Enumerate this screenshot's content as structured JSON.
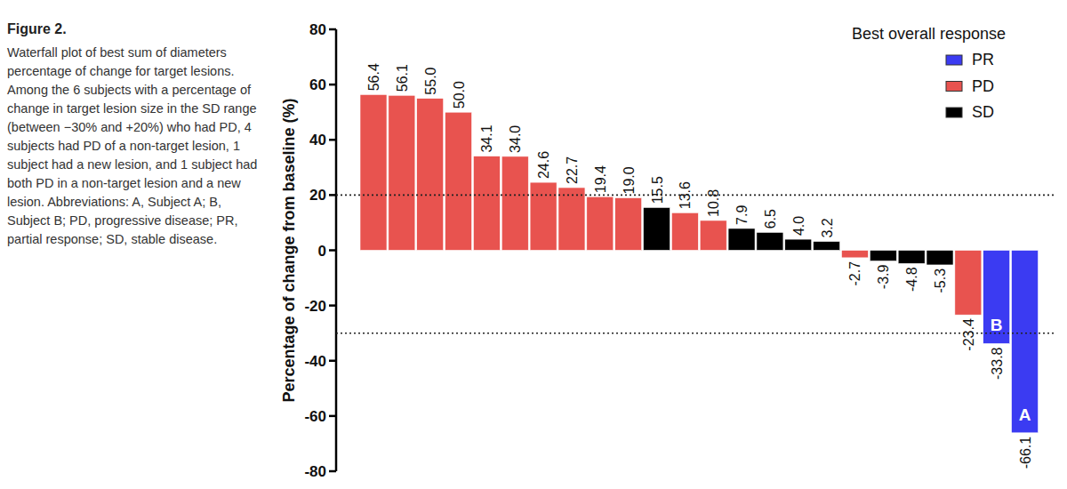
{
  "chart_data": {
    "type": "bar",
    "y_label": "Percentage of change from baseline (%)",
    "legend_title": "Best overall response",
    "legend": "top-right",
    "data_labels": true,
    "grid": false,
    "categories": [
      null,
      null,
      null,
      null,
      null,
      null,
      null,
      null,
      null,
      null,
      null,
      null,
      null,
      null,
      null,
      null,
      null,
      null,
      null,
      null,
      null,
      null,
      "B",
      "A"
    ],
    "series": [
      {
        "name": "PR",
        "color": "#3b3bf2",
        "values": [
          null,
          null,
          null,
          null,
          null,
          null,
          null,
          null,
          null,
          null,
          null,
          null,
          null,
          null,
          null,
          null,
          null,
          null,
          null,
          null,
          null,
          null,
          -33.8,
          -66.1
        ],
        "value_labels": [
          null,
          null,
          null,
          null,
          null,
          null,
          null,
          null,
          null,
          null,
          null,
          null,
          null,
          null,
          null,
          null,
          null,
          null,
          null,
          null,
          null,
          null,
          "-33.8",
          "-66.1"
        ]
      },
      {
        "name": "PD",
        "color": "#e8534f",
        "values": [
          56.4,
          56.1,
          55.0,
          50.0,
          34.1,
          34.0,
          24.6,
          22.7,
          19.4,
          19.0,
          null,
          13.6,
          10.8,
          null,
          null,
          null,
          null,
          -2.7,
          null,
          null,
          null,
          -23.4,
          null,
          null
        ],
        "value_labels": [
          "56.4",
          "56.1",
          "55.0",
          "50.0",
          "34.1",
          "34.0",
          "24.6",
          "22.7",
          "19.4",
          "19.0",
          null,
          "13.6",
          "10.8",
          null,
          null,
          null,
          null,
          "-2.7",
          null,
          null,
          null,
          "-23.4",
          null,
          null
        ]
      },
      {
        "name": "SD",
        "color": "#000000",
        "values": [
          null,
          null,
          null,
          null,
          null,
          null,
          null,
          null,
          null,
          null,
          15.5,
          null,
          null,
          7.9,
          6.5,
          4.0,
          3.2,
          null,
          -3.9,
          -4.8,
          -5.3,
          null,
          null,
          null
        ],
        "value_labels": [
          null,
          null,
          null,
          null,
          null,
          null,
          null,
          null,
          null,
          null,
          "15.5",
          null,
          null,
          "7.9",
          "6.5",
          "4.0",
          "3.2",
          null,
          "-3.9",
          "-4.8",
          "-5.3",
          null,
          null,
          null
        ]
      }
    ],
    "reference_lines": [
      20,
      -30
    ],
    "ylim": [
      -80,
      80
    ],
    "yticks": [
      -80,
      -60,
      -40,
      -20,
      0,
      20,
      40,
      60,
      80
    ]
  },
  "caption": {
    "label": "Figure 2.",
    "text": "Waterfall plot of best sum of diameters percentage of change for target lesions. Among the 6 subjects with a percentage of change in target lesion size in the SD range (between −30% and +20%) who had PD, 4 subjects had PD of a non-target lesion, 1 subject had a new lesion, and 1 subject had both PD in a non-target lesion and a new lesion. Abbreviations: A, Subject A; B, Subject B; PD, progressive disease; PR, partial response; SD, stable disease."
  }
}
